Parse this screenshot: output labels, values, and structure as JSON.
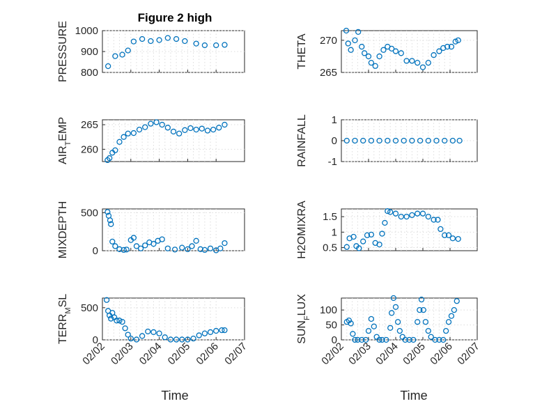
{
  "figure": {
    "title": "Figure 2 high",
    "xlabel": "Time",
    "xtick_labels": [
      "02/02",
      "02/03",
      "02/04",
      "02/05",
      "02/06",
      "02/07"
    ],
    "colors": {
      "marker": "#0072BD",
      "axis": "#262626",
      "grid": "#dcdcdc"
    }
  },
  "chart_data": [
    {
      "type": "scatter",
      "ylabel_parts": [
        "PRESSURE"
      ],
      "xlim": [
        0,
        5
      ],
      "ylim": [
        800,
        1000
      ],
      "yticks": [
        800,
        900,
        1000
      ],
      "grid": true,
      "x": [
        0.2,
        0.45,
        0.7,
        0.9,
        1.1,
        1.4,
        1.7,
        2.0,
        2.3,
        2.6,
        2.9,
        3.3,
        3.6,
        4.0,
        4.3
      ],
      "y": [
        830,
        878,
        885,
        905,
        948,
        960,
        950,
        955,
        965,
        960,
        950,
        938,
        930,
        930,
        932
      ]
    },
    {
      "type": "scatter",
      "ylabel_parts": [
        "THETA"
      ],
      "xlim": [
        0,
        5
      ],
      "ylim": [
        265,
        271.5
      ],
      "yticks": [
        265,
        270
      ],
      "grid": true,
      "x": [
        0.18,
        0.25,
        0.35,
        0.5,
        0.62,
        0.75,
        0.85,
        1.0,
        1.1,
        1.25,
        1.4,
        1.55,
        1.7,
        1.85,
        2.0,
        2.2,
        2.4,
        2.6,
        2.8,
        3.0,
        3.2,
        3.4,
        3.6,
        3.75,
        3.9,
        4.05,
        4.2,
        4.3
      ],
      "y": [
        271.5,
        269.5,
        268.5,
        270.0,
        271.3,
        269.0,
        268.0,
        267.5,
        266.5,
        266.0,
        267.5,
        268.5,
        269.0,
        268.7,
        268.3,
        268.0,
        266.8,
        266.8,
        266.5,
        265.8,
        266.5,
        267.7,
        268.3,
        268.8,
        269.0,
        269.0,
        269.8,
        270.0
      ]
    },
    {
      "type": "scatter",
      "ylabel_parts": [
        "AIR",
        "T",
        "EMP"
      ],
      "xlim": [
        0,
        5
      ],
      "ylim": [
        257.5,
        266
      ],
      "yticks": [
        260,
        265
      ],
      "grid": true,
      "x": [
        0.18,
        0.25,
        0.35,
        0.45,
        0.6,
        0.75,
        0.9,
        1.1,
        1.3,
        1.5,
        1.7,
        1.9,
        2.1,
        2.3,
        2.5,
        2.7,
        2.9,
        3.1,
        3.3,
        3.5,
        3.7,
        3.9,
        4.1,
        4.3
      ],
      "y": [
        257.8,
        258.2,
        259.3,
        259.8,
        261.5,
        262.5,
        263.2,
        263.3,
        264.0,
        264.5,
        265.2,
        265.5,
        265.0,
        264.4,
        263.6,
        263.2,
        263.9,
        264.3,
        264.0,
        264.2,
        263.8,
        264.0,
        264.4,
        265.0
      ]
    },
    {
      "type": "scatter",
      "ylabel_parts": [
        "RAINFALL"
      ],
      "xlim": [
        0,
        5
      ],
      "ylim": [
        -1,
        1
      ],
      "yticks": [
        -1,
        0,
        1
      ],
      "grid": true,
      "x": [
        0.2,
        0.5,
        0.8,
        1.1,
        1.4,
        1.7,
        2.0,
        2.3,
        2.6,
        2.9,
        3.2,
        3.5,
        3.8,
        4.1,
        4.35
      ],
      "y": [
        0,
        0,
        0,
        0,
        0,
        0,
        0,
        0,
        0,
        0,
        0,
        0,
        0,
        0,
        0
      ]
    },
    {
      "type": "scatter",
      "ylabel_parts": [
        "MIXDEPTH"
      ],
      "xlim": [
        0,
        5
      ],
      "ylim": [
        0,
        550
      ],
      "yticks": [
        0,
        500
      ],
      "grid": true,
      "x": [
        0.18,
        0.22,
        0.27,
        0.3,
        0.35,
        0.45,
        0.6,
        0.75,
        0.85,
        1.0,
        1.1,
        1.2,
        1.35,
        1.5,
        1.65,
        1.8,
        1.95,
        2.1,
        2.3,
        2.55,
        2.8,
        3.0,
        3.15,
        3.3,
        3.45,
        3.6,
        3.8,
        4.0,
        4.15,
        4.3
      ],
      "y": [
        510,
        460,
        400,
        350,
        120,
        60,
        20,
        10,
        15,
        140,
        170,
        60,
        30,
        70,
        110,
        90,
        130,
        150,
        30,
        15,
        40,
        20,
        60,
        130,
        20,
        10,
        30,
        5,
        30,
        100
      ]
    },
    {
      "type": "scatter",
      "ylabel_parts": [
        "H2OMIXRA"
      ],
      "xlim": [
        0,
        5
      ],
      "ylim": [
        0.4,
        1.75
      ],
      "yticks": [
        0.5,
        1,
        1.5
      ],
      "grid": true,
      "x": [
        0.2,
        0.3,
        0.45,
        0.55,
        0.65,
        0.8,
        0.95,
        1.1,
        1.25,
        1.4,
        1.5,
        1.6,
        1.7,
        1.8,
        2.0,
        2.2,
        2.4,
        2.6,
        2.8,
        3.0,
        3.2,
        3.4,
        3.55,
        3.65,
        3.8,
        3.95,
        4.1,
        4.3
      ],
      "y": [
        0.52,
        0.8,
        0.85,
        0.55,
        0.48,
        0.7,
        0.9,
        0.92,
        0.65,
        0.6,
        0.95,
        1.3,
        1.68,
        1.65,
        1.6,
        1.5,
        1.5,
        1.55,
        1.6,
        1.6,
        1.5,
        1.4,
        1.4,
        1.1,
        0.9,
        0.9,
        0.8,
        0.78
      ]
    },
    {
      "type": "scatter",
      "ylabel_parts": [
        "TERR",
        "M",
        "SL"
      ],
      "xlim": [
        0,
        5
      ],
      "ylim": [
        0,
        650
      ],
      "yticks": [
        0,
        500
      ],
      "grid": true,
      "x": [
        0.15,
        0.2,
        0.25,
        0.3,
        0.35,
        0.42,
        0.5,
        0.6,
        0.7,
        0.8,
        0.9,
        1.0,
        1.2,
        1.4,
        1.6,
        1.8,
        2.0,
        2.2,
        2.4,
        2.6,
        2.8,
        3.0,
        3.2,
        3.4,
        3.6,
        3.8,
        4.0,
        4.2,
        4.3
      ],
      "y": [
        620,
        450,
        380,
        330,
        420,
        350,
        300,
        300,
        280,
        180,
        80,
        20,
        5,
        60,
        130,
        120,
        100,
        40,
        5,
        5,
        5,
        5,
        20,
        70,
        100,
        120,
        140,
        150,
        150
      ]
    },
    {
      "type": "scatter",
      "ylabel_parts": [
        "SUN",
        "F",
        "LUX"
      ],
      "xlim": [
        0,
        5
      ],
      "ylim": [
        0,
        140
      ],
      "yticks": [
        0,
        50,
        100
      ],
      "grid": true,
      "x": [
        0.2,
        0.28,
        0.35,
        0.42,
        0.5,
        0.6,
        0.75,
        0.9,
        1.0,
        1.1,
        1.2,
        1.3,
        1.4,
        1.5,
        1.65,
        1.8,
        1.85,
        1.92,
        2.0,
        2.08,
        2.15,
        2.25,
        2.35,
        2.5,
        2.65,
        2.8,
        2.88,
        2.95,
        3.02,
        3.1,
        3.2,
        3.3,
        3.45,
        3.6,
        3.75,
        3.85,
        3.95,
        4.05,
        4.15,
        4.25
      ],
      "y": [
        60,
        65,
        55,
        20,
        0,
        0,
        0,
        0,
        30,
        70,
        45,
        10,
        0,
        0,
        0,
        40,
        90,
        140,
        110,
        60,
        30,
        10,
        0,
        0,
        0,
        60,
        100,
        135,
        100,
        60,
        30,
        10,
        0,
        0,
        0,
        30,
        60,
        80,
        100,
        130
      ]
    }
  ]
}
